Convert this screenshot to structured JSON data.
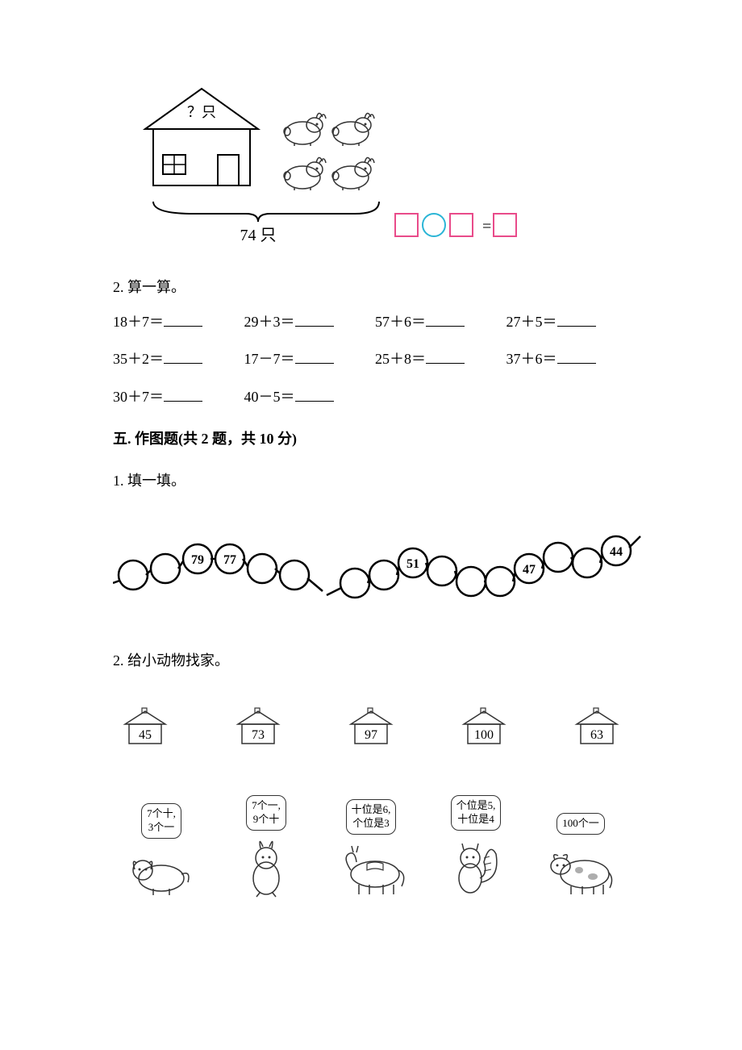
{
  "top_figure": {
    "house_label": "？只",
    "total_label": "74 只",
    "rabbit_count": 4,
    "equation": {
      "box_color": "#e94b8a",
      "circle_color": "#2bb5d6",
      "equals": "="
    }
  },
  "problem2": {
    "label": "2. 算一算。",
    "items": [
      "18＋7＝",
      "29＋3＝",
      "57＋6＝",
      "27＋5＝",
      "35＋2＝",
      "17－7＝",
      "25＋8＝",
      "37＋6＝",
      "30＋7＝",
      "40－5＝"
    ]
  },
  "section5": {
    "header": "五. 作图题(共 2 题，共 10 分)",
    "q1_label": "1. 填一填。",
    "q2_label": "2. 给小动物找家。"
  },
  "sequence": {
    "left_chain": {
      "circles": [
        {
          "label": ""
        },
        {
          "label": ""
        },
        {
          "label": "79"
        },
        {
          "label": "77"
        },
        {
          "label": ""
        },
        {
          "label": ""
        }
      ]
    },
    "right_chain": {
      "circles": [
        {
          "label": ""
        },
        {
          "label": ""
        },
        {
          "label": "51"
        },
        {
          "label": ""
        },
        {
          "label": ""
        },
        {
          "label": ""
        },
        {
          "label": "47"
        },
        {
          "label": ""
        },
        {
          "label": ""
        },
        {
          "label": "44"
        }
      ]
    },
    "circle_stroke": "#000",
    "circle_fill": "#fff",
    "circle_radius": 18
  },
  "houses": [
    "45",
    "73",
    "97",
    "100",
    "63"
  ],
  "animals": [
    {
      "bubble_line1": "7个十,",
      "bubble_line2": "3个一",
      "kind": "dog"
    },
    {
      "bubble_line1": "7个一,",
      "bubble_line2": "9个十",
      "kind": "rabbit"
    },
    {
      "bubble_line1": "十位是6,",
      "bubble_line2": "个位是3",
      "kind": "horse"
    },
    {
      "bubble_line1": "个位是5,",
      "bubble_line2": "十位是4",
      "kind": "squirrel"
    },
    {
      "bubble_line1": "100个一",
      "bubble_line2": "",
      "kind": "cow"
    }
  ]
}
